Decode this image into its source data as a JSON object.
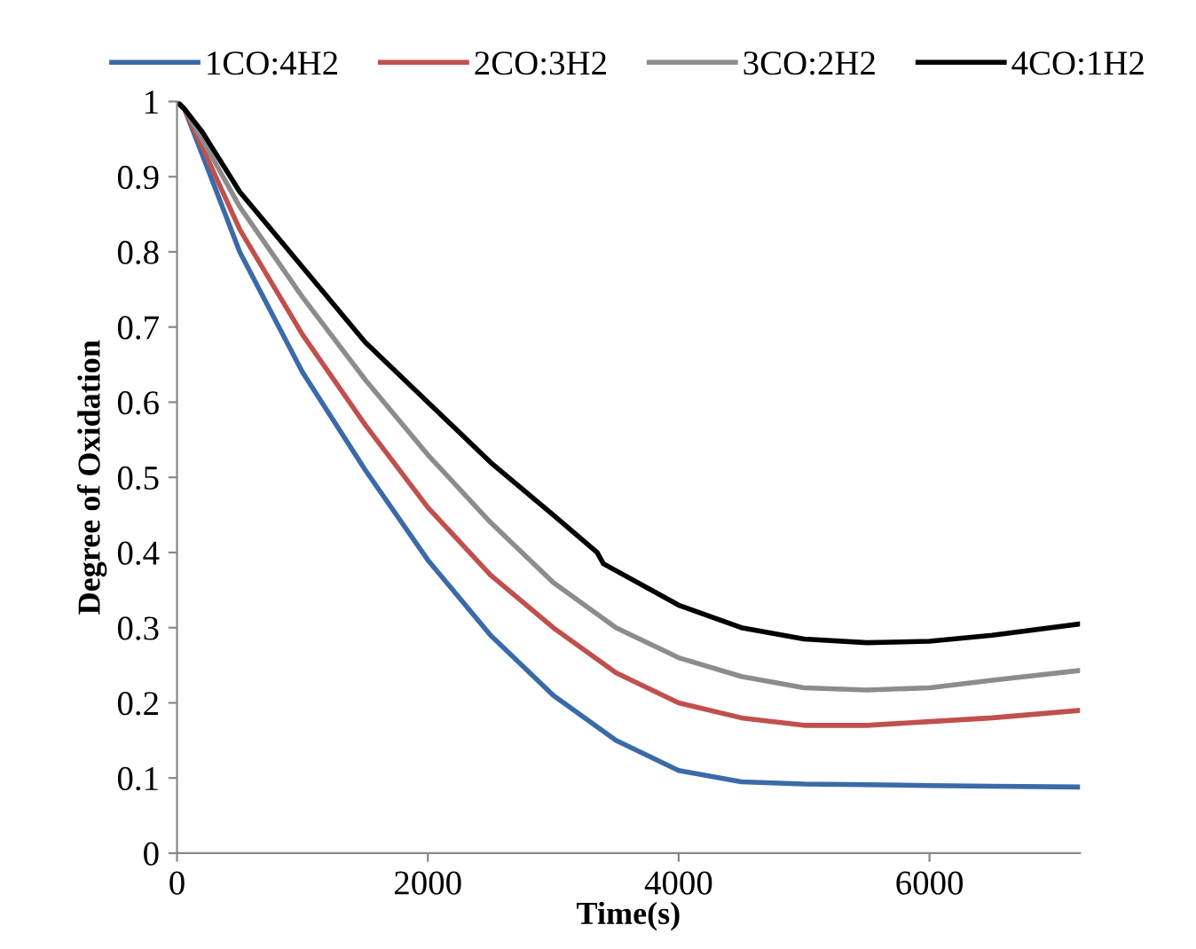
{
  "chart_data": {
    "type": "line",
    "xlabel": "Time(s)",
    "ylabel": "Degree of Oxidation",
    "xlim": [
      0,
      7200
    ],
    "xticks": [
      0,
      2000,
      4000,
      6000
    ],
    "ylim": [
      0,
      1
    ],
    "yticks": [
      0,
      0.1,
      0.2,
      0.3,
      0.4,
      0.5,
      0.6,
      0.7,
      0.8,
      0.9,
      1
    ],
    "grid": false,
    "legend": "top",
    "marker": "none",
    "line_style": "solid",
    "series": [
      {
        "name": "1CO:4H2",
        "color": "#3b6aa8",
        "x": [
          0,
          60,
          200,
          500,
          1000,
          1500,
          2000,
          2500,
          3000,
          3500,
          4000,
          4500,
          5000,
          5500,
          6000,
          6500,
          7200
        ],
        "values": [
          1,
          0.99,
          0.93,
          0.8,
          0.64,
          0.51,
          0.39,
          0.29,
          0.21,
          0.15,
          0.11,
          0.095,
          0.092,
          0.091,
          0.09,
          0.089,
          0.088
        ]
      },
      {
        "name": "2CO:3H2",
        "color": "#c0504d",
        "x": [
          0,
          60,
          200,
          500,
          1000,
          1500,
          2000,
          2500,
          3000,
          3500,
          4000,
          4500,
          5000,
          5500,
          6000,
          6500,
          7200
        ],
        "values": [
          1,
          0.99,
          0.94,
          0.83,
          0.69,
          0.57,
          0.46,
          0.37,
          0.3,
          0.24,
          0.2,
          0.18,
          0.17,
          0.17,
          0.175,
          0.18,
          0.19
        ]
      },
      {
        "name": "3CO:2H2",
        "color": "#8c8c8c",
        "x": [
          0,
          60,
          200,
          500,
          1000,
          1500,
          2000,
          2500,
          3000,
          3500,
          4000,
          4500,
          5000,
          5500,
          6000,
          6500,
          7200
        ],
        "values": [
          1,
          0.99,
          0.95,
          0.86,
          0.74,
          0.63,
          0.53,
          0.44,
          0.36,
          0.3,
          0.26,
          0.235,
          0.22,
          0.217,
          0.22,
          0.23,
          0.243
        ]
      },
      {
        "name": "4CO:1H2",
        "color": "#000000",
        "x": [
          0,
          60,
          200,
          500,
          1000,
          1500,
          2000,
          2500,
          3000,
          3350,
          3400,
          4000,
          4500,
          5000,
          5500,
          6000,
          6500,
          7200
        ],
        "values": [
          1,
          0.99,
          0.96,
          0.88,
          0.78,
          0.68,
          0.6,
          0.52,
          0.45,
          0.4,
          0.385,
          0.33,
          0.3,
          0.285,
          0.28,
          0.282,
          0.29,
          0.305
        ]
      }
    ]
  }
}
